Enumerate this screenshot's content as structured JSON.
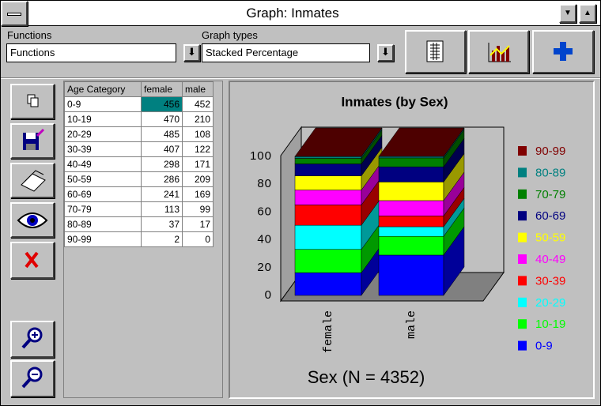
{
  "window": {
    "title": "Graph: Inmates"
  },
  "toolbar": {
    "functions_label": "Functions",
    "functions_value": "Functions",
    "graph_types_label": "Graph types",
    "graph_types_value": "Stacked Percentage"
  },
  "table": {
    "header": [
      "Age Category",
      "female",
      "male"
    ],
    "rows": [
      [
        "0-9",
        456,
        452
      ],
      [
        "10-19",
        470,
        210
      ],
      [
        "20-29",
        485,
        108
      ],
      [
        "30-39",
        407,
        122
      ],
      [
        "40-49",
        298,
        171
      ],
      [
        "50-59",
        286,
        209
      ],
      [
        "60-69",
        241,
        169
      ],
      [
        "70-79",
        113,
        99
      ],
      [
        "80-89",
        37,
        17
      ],
      [
        "90-99",
        2,
        0
      ]
    ]
  },
  "chart_data": {
    "type": "bar",
    "stacked": true,
    "title": "Inmates (by Sex)",
    "x_label": "Sex (N = 4352)",
    "categories": [
      "female",
      "male"
    ],
    "series": [
      {
        "name": "0-9",
        "color": "#0000ff",
        "values": [
          16.3,
          29.0
        ]
      },
      {
        "name": "10-19",
        "color": "#00ff00",
        "values": [
          16.8,
          13.5
        ]
      },
      {
        "name": "20-29",
        "color": "#00ffff",
        "values": [
          17.4,
          6.9
        ]
      },
      {
        "name": "30-39",
        "color": "#ff0000",
        "values": [
          14.6,
          7.8
        ]
      },
      {
        "name": "40-49",
        "color": "#ff00ff",
        "values": [
          10.7,
          11.0
        ]
      },
      {
        "name": "50-59",
        "color": "#ffff00",
        "values": [
          10.2,
          13.4
        ]
      },
      {
        "name": "60-69",
        "color": "#000080",
        "values": [
          8.6,
          10.9
        ]
      },
      {
        "name": "70-79",
        "color": "#008000",
        "values": [
          4.0,
          6.4
        ]
      },
      {
        "name": "80-89",
        "color": "#008080",
        "values": [
          1.3,
          1.1
        ]
      },
      {
        "name": "90-99",
        "color": "#800000",
        "values": [
          0.1,
          0.0
        ]
      }
    ],
    "ylim": [
      0,
      100
    ],
    "yticks": [
      0,
      20,
      40,
      60,
      80,
      100
    ],
    "grid": false
  }
}
